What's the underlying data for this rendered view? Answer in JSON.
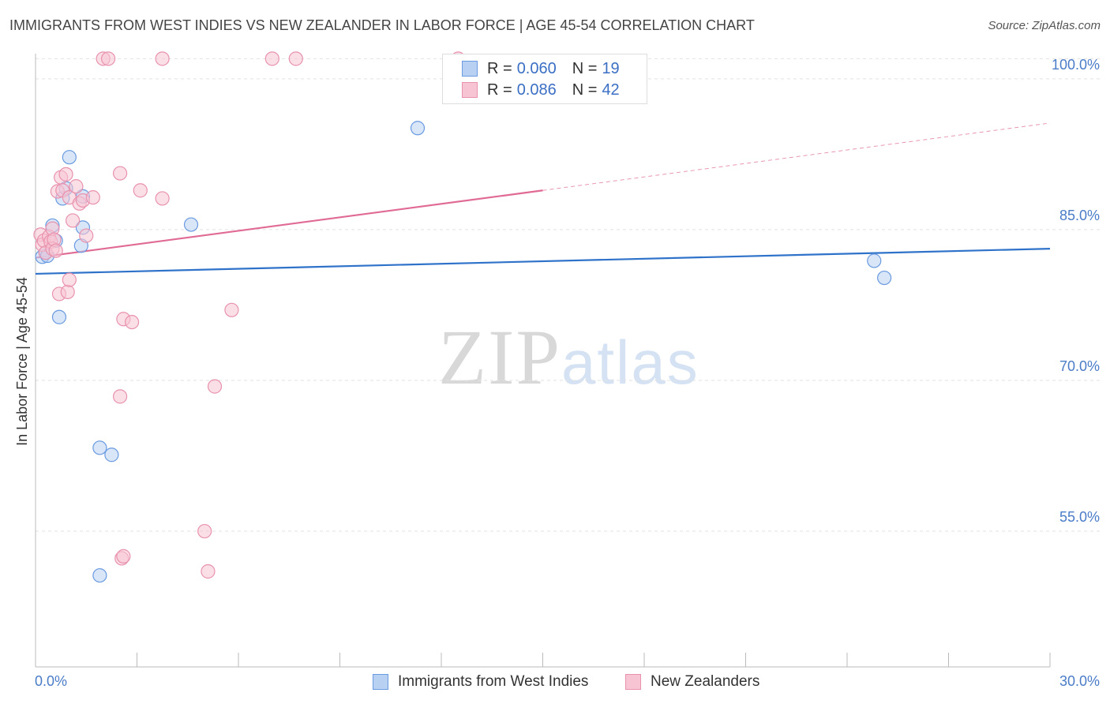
{
  "title": "IMMIGRANTS FROM WEST INDIES VS NEW ZEALANDER IN LABOR FORCE | AGE 45-54 CORRELATION CHART",
  "source": "Source: ZipAtlas.com",
  "watermark": {
    "zip": "ZIP",
    "atlas": "atlas"
  },
  "legend": {
    "rows": [
      {
        "r_label": "R =",
        "r_value": "0.060",
        "n_label": "N =",
        "n_value": "19"
      },
      {
        "r_label": "R =",
        "r_value": "0.086",
        "n_label": "N =",
        "n_value": "42"
      }
    ]
  },
  "bottom_legend": {
    "series1": "Immigrants from West Indies",
    "series2": "New Zealanders"
  },
  "colors": {
    "blue_fill": "#b8d1f3",
    "blue_stroke": "#6a9ae0",
    "blue_line": "#2f72c9",
    "pink_fill": "#f7c4d4",
    "pink_stroke": "#e892ae",
    "pink_line": "#e06a94",
    "grid": "#e2e2e2",
    "axis_label": "#4a7cc7"
  },
  "chart_data": {
    "type": "scatter",
    "title": "IMMIGRANTS FROM WEST INDIES VS NEW ZEALANDER IN LABOR FORCE | AGE 45-54 CORRELATION CHART",
    "xlabel": "",
    "ylabel": "In Labor Force | Age 45-54",
    "xlim": [
      0,
      30
    ],
    "ylim": [
      41.5,
      102.5
    ],
    "x_tick_labels": [
      "0.0%",
      "30.0%"
    ],
    "y_ticks": [
      55,
      70,
      85,
      100
    ],
    "y_tick_labels": [
      "55.0%",
      "70.0%",
      "85.0%",
      "100.0%"
    ],
    "grid": true,
    "series": [
      {
        "name": "Immigrants from West Indies",
        "color": "blue",
        "r": 0.06,
        "n": 19,
        "trend": {
          "x": [
            0,
            30
          ],
          "y": [
            80.6,
            83.1
          ],
          "dashed_from": null
        },
        "points": [
          [
            0.2,
            82.3
          ],
          [
            0.3,
            82.7
          ],
          [
            0.35,
            82.4
          ],
          [
            0.5,
            85.4
          ],
          [
            0.6,
            83.9
          ],
          [
            0.7,
            76.3
          ],
          [
            0.8,
            88.1
          ],
          [
            0.9,
            89.1
          ],
          [
            1.0,
            92.2
          ],
          [
            1.4,
            85.2
          ],
          [
            1.4,
            88.3
          ],
          [
            1.35,
            83.4
          ],
          [
            1.9,
            63.3
          ],
          [
            2.25,
            62.6
          ],
          [
            1.9,
            50.6
          ],
          [
            4.6,
            85.5
          ],
          [
            11.3,
            95.1
          ],
          [
            24.8,
            81.9
          ],
          [
            25.1,
            80.2
          ]
        ]
      },
      {
        "name": "New Zealanders",
        "color": "pink",
        "r": 0.086,
        "n": 42,
        "trend": {
          "x": [
            0,
            30
          ],
          "y": [
            82.2,
            95.6
          ],
          "dashed_from": 15
        },
        "points": [
          [
            0.15,
            84.5
          ],
          [
            0.2,
            83.5
          ],
          [
            0.25,
            83.9
          ],
          [
            0.3,
            82.7
          ],
          [
            0.4,
            84.3
          ],
          [
            0.45,
            83.8
          ],
          [
            0.5,
            85.1
          ],
          [
            0.5,
            83.1
          ],
          [
            0.55,
            84.0
          ],
          [
            0.6,
            82.9
          ],
          [
            0.65,
            88.8
          ],
          [
            0.7,
            78.6
          ],
          [
            0.75,
            90.2
          ],
          [
            0.8,
            88.9
          ],
          [
            0.9,
            90.5
          ],
          [
            0.95,
            78.8
          ],
          [
            1.0,
            80.0
          ],
          [
            1.0,
            88.2
          ],
          [
            1.1,
            85.9
          ],
          [
            1.2,
            89.3
          ],
          [
            1.3,
            87.6
          ],
          [
            1.4,
            87.9
          ],
          [
            1.5,
            84.4
          ],
          [
            1.7,
            88.2
          ],
          [
            2.0,
            102.0
          ],
          [
            2.15,
            102.0
          ],
          [
            2.5,
            90.6
          ],
          [
            2.6,
            76.1
          ],
          [
            2.85,
            75.8
          ],
          [
            2.5,
            68.4
          ],
          [
            2.55,
            52.3
          ],
          [
            2.6,
            52.5
          ],
          [
            3.1,
            88.9
          ],
          [
            3.75,
            88.1
          ],
          [
            3.75,
            102.0
          ],
          [
            5.0,
            55.0
          ],
          [
            5.1,
            51.0
          ],
          [
            5.3,
            69.4
          ],
          [
            5.8,
            77.0
          ],
          [
            7.0,
            102.0
          ],
          [
            7.7,
            102.0
          ],
          [
            12.5,
            102.0
          ]
        ]
      }
    ]
  }
}
